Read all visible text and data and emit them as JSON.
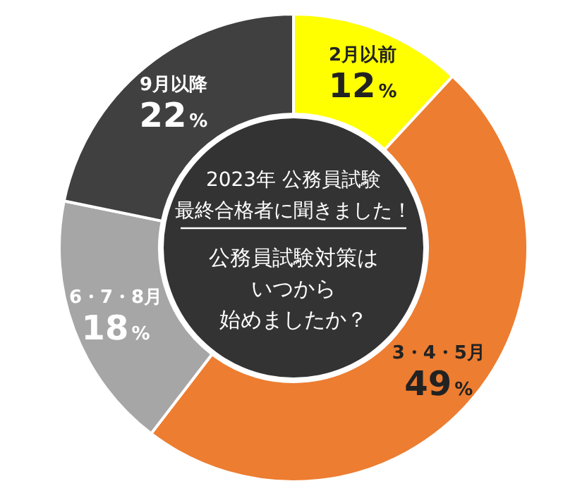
{
  "chart_data": {
    "type": "donut",
    "title": "2023年 公務員試験",
    "subtitle": "最終合格者に聞きました！",
    "annotations": [
      "公務員試験対策は",
      "いつから",
      "始めましたか？"
    ],
    "categories": [
      "2月以前",
      "3・4・5月",
      "6・7・8月",
      "9月以降"
    ],
    "values": [
      12,
      49,
      18,
      22
    ],
    "value_labels": [
      "12%",
      "49%",
      "18%",
      "22%"
    ],
    "colors": [
      "#ffff00",
      "#ed7d31",
      "#a6a6a6",
      "#404040"
    ]
  }
}
